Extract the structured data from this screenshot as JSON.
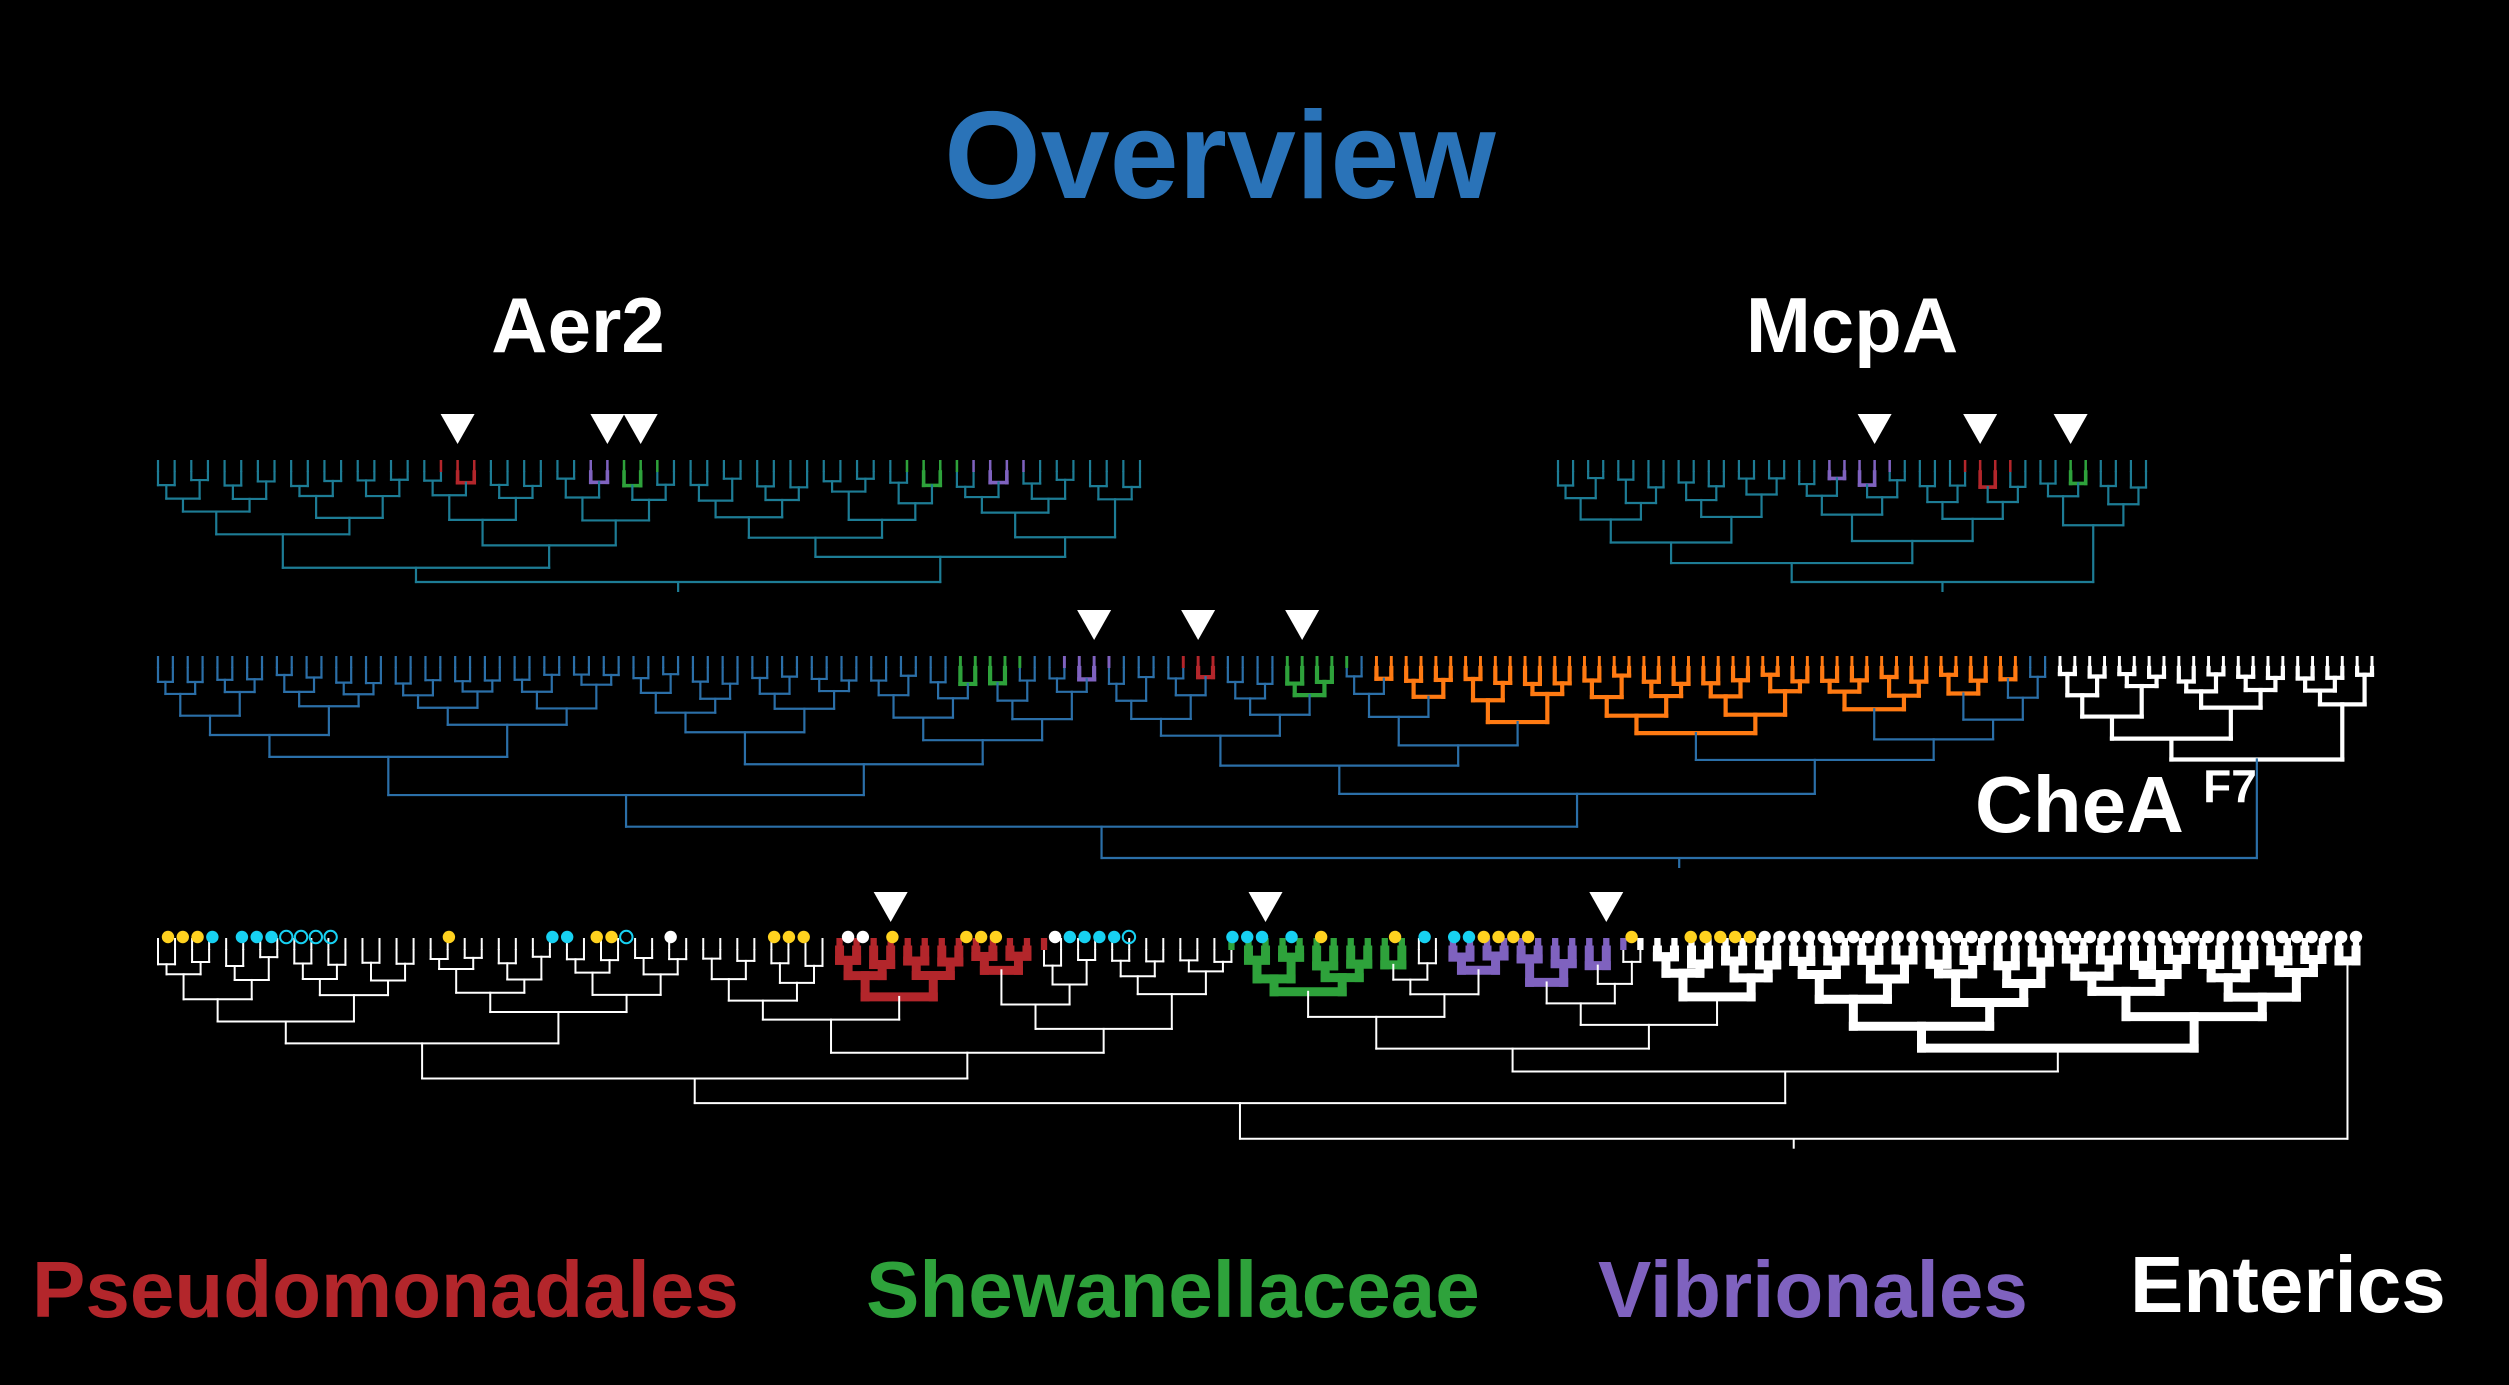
{
  "title": "Overview",
  "colors": {
    "background": "#000000",
    "title": "#2a73b8",
    "aer2_base": "#1d7c95",
    "mcpa_base": "#1d7c95",
    "chea_base": "#2b6fa8",
    "bottom_base": "#ffffff",
    "pseudomonadales": "#b3262b",
    "shewanellaceae": "#2ea23b",
    "vibrionales": "#7f62bf",
    "enterics": "#ffffff",
    "orange": "#ff7a12",
    "dot_yellow": "#ffd21f",
    "dot_cyan": "#17d1f2",
    "dot_white": "#ffffff",
    "marker": "#ffffff"
  },
  "trees": [
    {
      "id": "aer2",
      "label": "Aer2",
      "base_color": "aer2_base",
      "leaves": 60,
      "segments": [
        {
          "from": 17,
          "to": 19,
          "group": "pseudomonadales"
        },
        {
          "from": 26,
          "to": 27,
          "group": "vibrionales"
        },
        {
          "from": 28,
          "to": 30,
          "group": "shewanellaceae"
        },
        {
          "from": 45,
          "to": 48,
          "group": "shewanellaceae"
        },
        {
          "from": 49,
          "to": 52,
          "group": "vibrionales"
        }
      ],
      "markers": [
        18,
        27,
        29
      ]
    },
    {
      "id": "mcpa",
      "label": "McpA",
      "base_color": "mcpa_base",
      "leaves": 40,
      "segments": [
        {
          "from": 18,
          "to": 22,
          "group": "vibrionales"
        },
        {
          "from": 27,
          "to": 30,
          "group": "pseudomonadales"
        },
        {
          "from": 34,
          "to": 35,
          "group": "shewanellaceae"
        }
      ],
      "markers": [
        21,
        28,
        34
      ]
    },
    {
      "id": "chea",
      "label": "CheA",
      "label_sup": "F7",
      "base_color": "chea_base",
      "leaves": 150,
      "segments": [
        {
          "from": 54,
          "to": 58,
          "group": "shewanellaceae"
        },
        {
          "from": 61,
          "to": 64,
          "group": "vibrionales"
        },
        {
          "from": 69,
          "to": 71,
          "group": "pseudomonadales"
        },
        {
          "from": 76,
          "to": 80,
          "group": "shewanellaceae"
        },
        {
          "from": 82,
          "to": 125,
          "group": "orange"
        },
        {
          "from": 128,
          "to": 149,
          "group": "enterics"
        }
      ],
      "markers": [
        63,
        70,
        77
      ]
    },
    {
      "id": "species",
      "label": "",
      "base_color": "bottom_base",
      "leaves": 130,
      "segments": [
        {
          "from": 40,
          "to": 52,
          "group": "pseudomonadales"
        },
        {
          "from": 63,
          "to": 73,
          "group": "shewanellaceae"
        },
        {
          "from": 76,
          "to": 86,
          "group": "vibrionales"
        },
        {
          "from": 87,
          "to": 129,
          "group": "enterics"
        }
      ],
      "markers": [
        43,
        65,
        85
      ]
    }
  ],
  "occurrence_dots": "yyyc0cccoooo0000000y000000cc0yyo00w000000yyy00ww0y0000yyy000wcccco000000ccc0c0y0000y0c0ccyyyy000000y000yyyyywwwwwwwwwwwwwwwwwwwwwwwwwwwwwwwwwwwwwwwww",
  "legend": [
    {
      "label": "Pseudomonadales",
      "color": "pseudomonadales"
    },
    {
      "label": "Shewanellaceae",
      "color": "shewanellaceae"
    },
    {
      "label": "Vibrionales",
      "color": "vibrionales"
    },
    {
      "label": "Enterics",
      "color": "enterics"
    }
  ]
}
